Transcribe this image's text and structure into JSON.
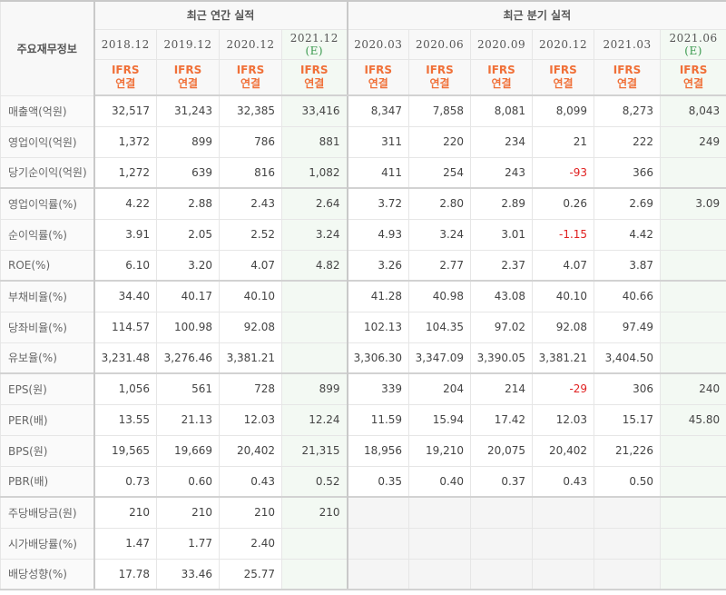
{
  "table": {
    "corner_label": "주요재무정보",
    "groups": {
      "annual": "최근 연간 실적",
      "quarterly": "최근 분기 실적"
    },
    "annual_periods": [
      {
        "period": "2018.12",
        "est": ""
      },
      {
        "period": "2019.12",
        "est": ""
      },
      {
        "period": "2020.12",
        "est": ""
      },
      {
        "period": "2021.12",
        "est": "(E)"
      }
    ],
    "quarterly_periods": [
      {
        "period": "2020.03",
        "est": ""
      },
      {
        "period": "2020.06",
        "est": ""
      },
      {
        "period": "2020.09",
        "est": ""
      },
      {
        "period": "2020.12",
        "est": ""
      },
      {
        "period": "2021.03",
        "est": ""
      },
      {
        "period": "2021.06",
        "est": "(E)"
      }
    ],
    "ifrs": {
      "line1": "IFRS",
      "line2": "연결"
    },
    "colors": {
      "ifrs": "#f07038",
      "estimate": "#3a9a4e",
      "estimate_bg": "#f3f9f3",
      "negative": "#e02020"
    },
    "rows": [
      {
        "label": "매출액(억원)",
        "annual": [
          "32,517",
          "31,243",
          "32,385",
          "33,416"
        ],
        "quarterly": [
          "8,347",
          "7,858",
          "8,081",
          "8,099",
          "8,273",
          "8,043"
        ]
      },
      {
        "label": "영업이익(억원)",
        "annual": [
          "1,372",
          "899",
          "786",
          "881"
        ],
        "quarterly": [
          "311",
          "220",
          "234",
          "21",
          "222",
          "249"
        ]
      },
      {
        "label": "당기순이익(억원)",
        "annual": [
          "1,272",
          "639",
          "816",
          "1,082"
        ],
        "quarterly": [
          "411",
          "254",
          "243",
          "-93",
          "366",
          ""
        ]
      },
      {
        "label": "영업이익률(%)",
        "annual": [
          "4.22",
          "2.88",
          "2.43",
          "2.64"
        ],
        "quarterly": [
          "3.72",
          "2.80",
          "2.89",
          "0.26",
          "2.69",
          "3.09"
        ]
      },
      {
        "label": "순이익률(%)",
        "annual": [
          "3.91",
          "2.05",
          "2.52",
          "3.24"
        ],
        "quarterly": [
          "4.93",
          "3.24",
          "3.01",
          "-1.15",
          "4.42",
          ""
        ]
      },
      {
        "label": "ROE(%)",
        "annual": [
          "6.10",
          "3.20",
          "4.07",
          "4.82"
        ],
        "quarterly": [
          "3.26",
          "2.77",
          "2.37",
          "4.07",
          "3.87",
          ""
        ]
      },
      {
        "label": "부채비율(%)",
        "annual": [
          "34.40",
          "40.17",
          "40.10",
          ""
        ],
        "quarterly": [
          "41.28",
          "40.98",
          "43.08",
          "40.10",
          "40.66",
          ""
        ]
      },
      {
        "label": "당좌비율(%)",
        "annual": [
          "114.57",
          "100.98",
          "92.08",
          ""
        ],
        "quarterly": [
          "102.13",
          "104.35",
          "97.02",
          "92.08",
          "97.49",
          ""
        ]
      },
      {
        "label": "유보율(%)",
        "annual": [
          "3,231.48",
          "3,276.46",
          "3,381.21",
          ""
        ],
        "quarterly": [
          "3,306.30",
          "3,347.09",
          "3,390.05",
          "3,381.21",
          "3,404.50",
          ""
        ]
      },
      {
        "label": "EPS(원)",
        "annual": [
          "1,056",
          "561",
          "728",
          "899"
        ],
        "quarterly": [
          "339",
          "204",
          "214",
          "-29",
          "306",
          "240"
        ]
      },
      {
        "label": "PER(배)",
        "annual": [
          "13.55",
          "21.13",
          "12.03",
          "12.24"
        ],
        "quarterly": [
          "11.59",
          "15.94",
          "17.42",
          "12.03",
          "15.17",
          "45.80"
        ]
      },
      {
        "label": "BPS(원)",
        "annual": [
          "19,565",
          "19,669",
          "20,402",
          "21,315"
        ],
        "quarterly": [
          "18,956",
          "19,210",
          "20,075",
          "20,402",
          "21,226",
          ""
        ]
      },
      {
        "label": "PBR(배)",
        "annual": [
          "0.73",
          "0.60",
          "0.43",
          "0.52"
        ],
        "quarterly": [
          "0.35",
          "0.40",
          "0.37",
          "0.43",
          "0.50",
          ""
        ]
      },
      {
        "label": "주당배당금(원)",
        "annual": [
          "210",
          "210",
          "210",
          "210"
        ],
        "quarterly": [
          "",
          "",
          "",
          "",
          "",
          ""
        ]
      },
      {
        "label": "시가배당률(%)",
        "annual": [
          "1.47",
          "1.77",
          "2.40",
          ""
        ],
        "quarterly": [
          "",
          "",
          "",
          "",
          "",
          ""
        ]
      },
      {
        "label": "배당성향(%)",
        "annual": [
          "17.78",
          "33.46",
          "25.77",
          ""
        ],
        "quarterly": [
          "",
          "",
          "",
          "",
          "",
          ""
        ]
      }
    ]
  }
}
